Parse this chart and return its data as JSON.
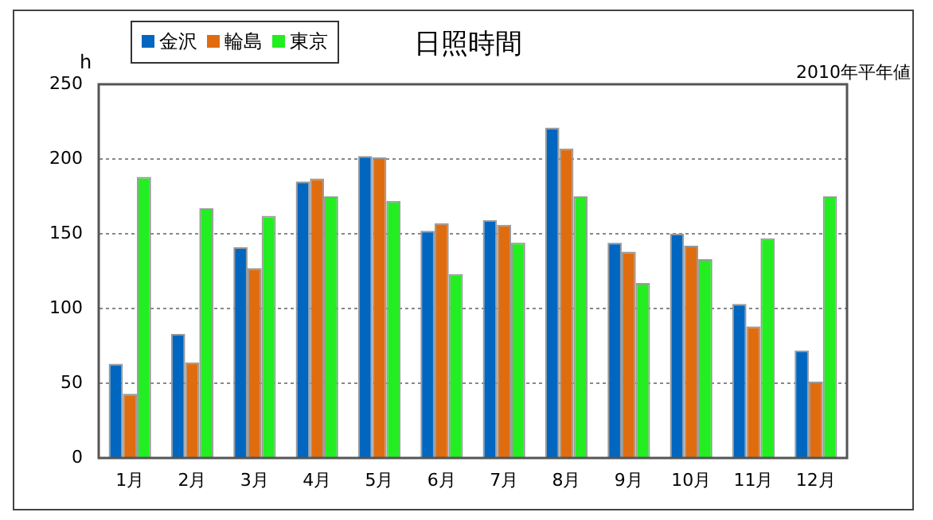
{
  "chart_data": {
    "type": "bar",
    "title": "日照時間",
    "subtitle": "2010年平年値",
    "ylabel": "h",
    "categories": [
      "1月",
      "2月",
      "3月",
      "4月",
      "5月",
      "6月",
      "7月",
      "8月",
      "9月",
      "10月",
      "11月",
      "12月"
    ],
    "series": [
      {
        "name": "金沢",
        "color": "#0066c0",
        "values": [
          63,
          83,
          141,
          185,
          202,
          152,
          159,
          221,
          144,
          150,
          103,
          72
        ]
      },
      {
        "name": "輪島",
        "color": "#e06c10",
        "values": [
          43,
          64,
          127,
          187,
          201,
          157,
          156,
          207,
          138,
          142,
          88,
          51
        ]
      },
      {
        "name": "東京",
        "color": "#22ee22",
        "values": [
          188,
          167,
          162,
          175,
          172,
          123,
          144,
          175,
          117,
          133,
          147,
          175
        ]
      }
    ],
    "ylim": [
      0,
      250
    ],
    "yticks": [
      0,
      50,
      100,
      150,
      200,
      250
    ],
    "grid": "y",
    "legend": "top left"
  }
}
